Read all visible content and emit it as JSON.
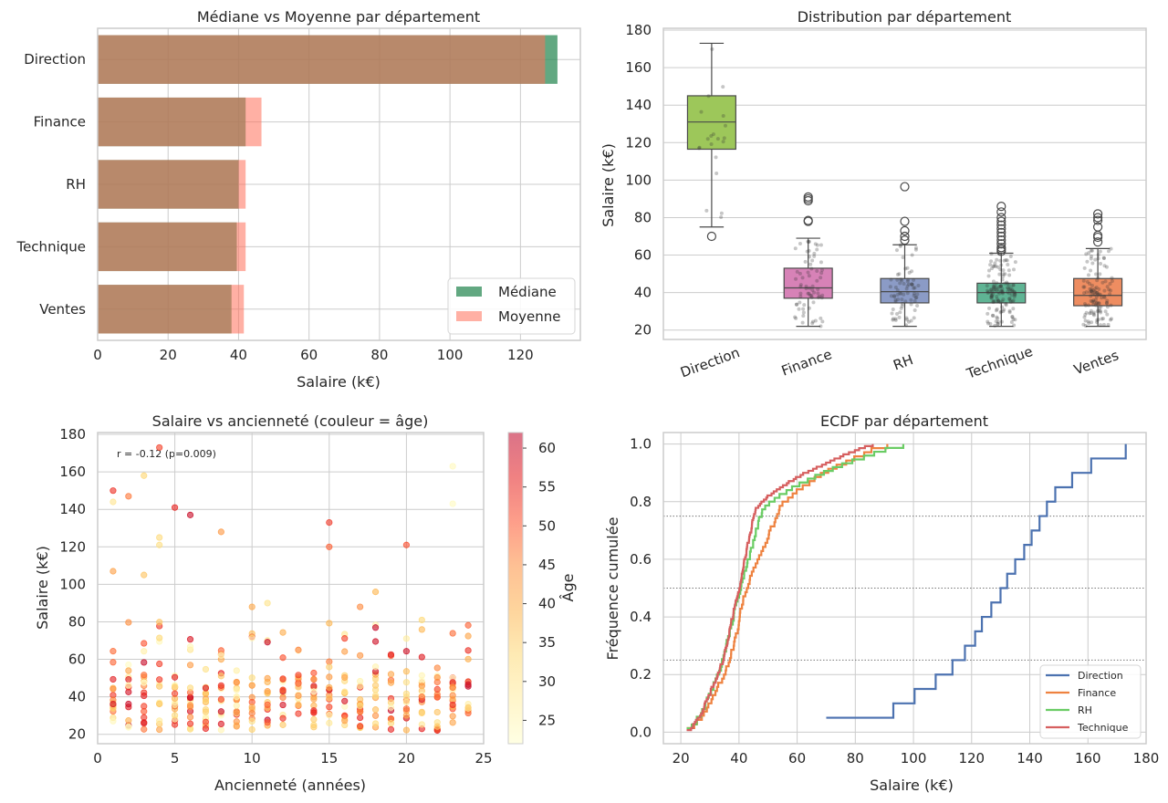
{
  "chart_data": [
    {
      "id": "bar",
      "type": "bar",
      "orientation": "horizontal",
      "title": "Médiane vs Moyenne par département",
      "xlabel": "Salaire (k€)",
      "ylabel": "",
      "xlim": [
        0,
        137
      ],
      "xticks": [
        0,
        20,
        40,
        60,
        80,
        100,
        120
      ],
      "categories": [
        "Direction",
        "Finance",
        "RH",
        "Technique",
        "Ventes"
      ],
      "series": [
        {
          "name": "Médiane",
          "color": "#2e8b57",
          "values": [
            130.5,
            42,
            40,
            39.5,
            38
          ]
        },
        {
          "name": "Moyenne",
          "color": "#ff6f5a",
          "values": [
            127,
            46.5,
            42,
            42,
            41.5
          ]
        }
      ],
      "legend": [
        "Médiane",
        "Moyenne"
      ],
      "legend_loc": "lower-right",
      "grid": true
    },
    {
      "id": "box",
      "type": "box",
      "title": "Distribution par département",
      "xlabel": "",
      "ylabel": "Salaire (k€)",
      "ylim": [
        15,
        181
      ],
      "yticks": [
        20,
        40,
        60,
        80,
        100,
        120,
        140,
        160,
        180
      ],
      "categories": [
        "Direction",
        "Finance",
        "RH",
        "Technique",
        "Ventes"
      ],
      "boxes": [
        {
          "name": "Direction",
          "color": "#9dc75a",
          "whislo": 75,
          "q1": 116.5,
          "med": 131,
          "q3": 145,
          "whishi": 173,
          "fliers": [
            70
          ],
          "n": 20
        },
        {
          "name": "Finance",
          "color": "#d782b7",
          "whislo": 22,
          "q1": 37,
          "med": 42.5,
          "q3": 53,
          "whishi": 69,
          "fliers": [
            78,
            78.5,
            89,
            90,
            91
          ],
          "n": 70
        },
        {
          "name": "RH",
          "color": "#8b9bc6",
          "whislo": 22,
          "q1": 34.5,
          "med": 40.5,
          "q3": 47.5,
          "whishi": 65.5,
          "fliers": [
            68,
            70,
            73,
            78,
            96.5
          ],
          "n": 75
        },
        {
          "name": "Technique",
          "color": "#5fb494",
          "whislo": 22,
          "q1": 34.5,
          "med": 40,
          "q3": 45,
          "whishi": 61,
          "fliers": [
            62,
            63,
            64,
            66,
            68,
            70,
            72,
            74,
            76,
            78,
            80,
            83,
            86
          ],
          "n": 140
        },
        {
          "name": "Ventes",
          "color": "#ee8d61",
          "whislo": 22,
          "q1": 33,
          "med": 38.5,
          "q3": 47.5,
          "whishi": 63.5,
          "fliers": [
            67,
            69.5,
            70.5,
            75,
            78.5,
            80,
            82
          ],
          "n": 120
        }
      ],
      "grid": true
    },
    {
      "id": "scatter",
      "type": "scatter",
      "title": "Salaire vs ancienneté (couleur = âge)",
      "xlabel": "Ancienneté (années)",
      "ylabel": "Salaire (k€)",
      "xlim": [
        0,
        25
      ],
      "ylim": [
        15,
        181
      ],
      "xticks": [
        0,
        5,
        10,
        15,
        20,
        25
      ],
      "yticks": [
        20,
        40,
        60,
        80,
        100,
        120,
        140,
        160,
        180
      ],
      "annotation": "r = -0.12 (p=0.009)",
      "colorbar": {
        "label": "Âge",
        "min": 22,
        "max": 62,
        "ticks": [
          25,
          30,
          35,
          40,
          45,
          50,
          55,
          60
        ]
      },
      "grid": true
    },
    {
      "id": "ecdf",
      "type": "line",
      "subtype": "ecdf",
      "title": "ECDF par département",
      "xlabel": "Salaire (k€)",
      "ylabel": "Fréquence cumulée",
      "xlim": [
        14,
        180
      ],
      "ylim": [
        -0.04,
        1.04
      ],
      "xticks": [
        20,
        40,
        60,
        80,
        100,
        120,
        140,
        160,
        180
      ],
      "yticks": [
        0.0,
        0.2,
        0.4,
        0.6,
        0.8,
        1.0
      ],
      "hlines": [
        0.25,
        0.5,
        0.75
      ],
      "series": [
        {
          "name": "Direction",
          "color": "#4c72b0",
          "min": 70,
          "max": 173,
          "n": 20
        },
        {
          "name": "Finance",
          "color": "#ee8240",
          "min": 22,
          "max": 91,
          "n": 70
        },
        {
          "name": "RH",
          "color": "#6acc64",
          "min": 22,
          "max": 96.5,
          "n": 75
        },
        {
          "name": "Technique",
          "color": "#d65f5f",
          "min": 22,
          "max": 86,
          "n": 140
        }
      ],
      "legend": [
        "Direction",
        "Finance",
        "RH",
        "Technique"
      ],
      "legend_loc": "lower-right",
      "grid": true
    }
  ]
}
